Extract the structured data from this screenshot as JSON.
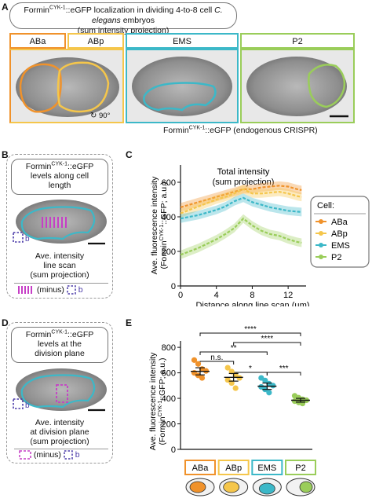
{
  "panels": {
    "a": {
      "label": "A",
      "title_line1_pre": "Formin",
      "title_sup": "CYK-1",
      "title_line1_post": "::eGFP localization in dividing 4-to-8 cell",
      "title_italic": "C. elegans",
      "title_line1_end": "embryos",
      "title_line2": "(sum intensity projection)",
      "cells": [
        "ABa",
        "ABp",
        "EMS",
        "P2"
      ],
      "rotation": "90°",
      "caption_pre": "Formin",
      "caption_sup": "CYK-1",
      "caption_post": "::eGFP (endogenous CRISPR)"
    },
    "b": {
      "label": "B",
      "box_pre": "Formin",
      "box_sup": "CYK-1",
      "box_post": "::eGFP",
      "box_line2": "levels along cell",
      "box_line3": "length",
      "bg_mark": "b",
      "desc_line1": "Ave. intensity",
      "desc_line2": "line scan",
      "desc_line3": "(sum projection)",
      "minus": "(minus)",
      "bg_ref": "b"
    },
    "c": {
      "label": "C"
    },
    "d": {
      "label": "D",
      "box_pre": "Formin",
      "box_sup": "CYK-1",
      "box_post": "::eGFP",
      "box_line2": "levels at the",
      "box_line3": "division plane",
      "bg_mark": "b",
      "desc_line1": "Ave. intensity",
      "desc_line2": "at division plane",
      "desc_line3": "(sum projection)",
      "minus": "(minus)",
      "bg_ref": "b"
    },
    "e": {
      "label": "E",
      "cell_labels": [
        "ABa",
        "ABp",
        "EMS",
        "P2"
      ]
    }
  },
  "colors": {
    "ABa": "#f0922b",
    "ABp": "#f5c64b",
    "EMS": "#3cb8c8",
    "P2": "#9acd5a",
    "bg_box": "#4a3aa8",
    "scan": "#c63ec6"
  },
  "chart_data": [
    {
      "type": "line",
      "panel": "C",
      "title": "Total intensity",
      "subtitle": "(sum projection)",
      "xlabel": "Distance along line scan (µm)",
      "ylabel_line1": "Ave. fluorescence intensity",
      "ylabel_pre": "(Formin",
      "ylabel_sup": "CYK-1",
      "ylabel_post": "::GFP; a.u.)",
      "xlim": [
        0,
        14
      ],
      "ylim": [
        0,
        700
      ],
      "xticks": [
        0,
        4,
        8,
        12
      ],
      "yticks": [
        0,
        200,
        400,
        600
      ],
      "legend_title": "Cell:",
      "legend_position": "right",
      "x": [
        0,
        1,
        2,
        3,
        4,
        5,
        6,
        7,
        8,
        9,
        10,
        11,
        12,
        13,
        13.5
      ],
      "series": [
        {
          "name": "ABa",
          "values": [
            455,
            470,
            485,
            500,
            515,
            530,
            545,
            560,
            560,
            570,
            575,
            580,
            575,
            560,
            555
          ]
        },
        {
          "name": "ABp",
          "values": [
            420,
            440,
            460,
            480,
            500,
            515,
            535,
            560,
            535,
            535,
            540,
            545,
            535,
            520,
            515
          ]
        },
        {
          "name": "EMS",
          "values": [
            390,
            400,
            410,
            425,
            440,
            460,
            490,
            510,
            485,
            470,
            455,
            445,
            435,
            430,
            428
          ]
        },
        {
          "name": "P2",
          "values": [
            180,
            200,
            220,
            245,
            270,
            300,
            335,
            390,
            350,
            320,
            300,
            290,
            270,
            255,
            250
          ]
        }
      ]
    },
    {
      "type": "scatter",
      "panel": "E",
      "ylabel_line1": "Ave. fluorescence intensity",
      "ylabel_pre": "(Formin",
      "ylabel_sup": "CYK-1",
      "ylabel_post": "::GFP; a.u.)",
      "ylim": [
        0,
        850
      ],
      "yticks": [
        0,
        200,
        400,
        600,
        800
      ],
      "categories": [
        "ABa",
        "ABp",
        "EMS",
        "P2"
      ],
      "means": [
        612,
        565,
        495,
        385
      ],
      "errors": [
        28,
        30,
        25,
        15
      ],
      "points": [
        [
          700,
          670,
          630,
          615,
          600,
          580,
          560
        ],
        [
          640,
          610,
          580,
          560,
          545,
          520,
          480
        ],
        [
          560,
          540,
          515,
          500,
          490,
          470,
          445
        ],
        [
          420,
          405,
          392,
          385,
          378,
          368,
          360
        ]
      ],
      "significance": [
        {
          "from": 0,
          "to": 3,
          "label": "****"
        },
        {
          "from": 1,
          "to": 3,
          "label": "****"
        },
        {
          "from": 0,
          "to": 2,
          "label": "**"
        },
        {
          "from": 0,
          "to": 1,
          "label": "n.s."
        },
        {
          "from": 1,
          "to": 2,
          "label": "*"
        },
        {
          "from": 2,
          "to": 3,
          "label": "***"
        }
      ]
    }
  ]
}
